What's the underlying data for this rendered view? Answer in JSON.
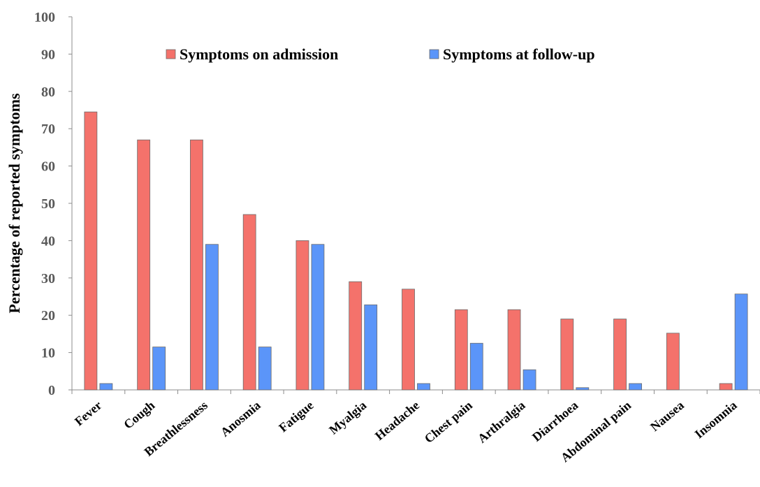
{
  "chart_data": {
    "type": "bar",
    "title": "",
    "xlabel": "",
    "ylabel": "Percentage of reported symptoms",
    "ylim": [
      0,
      100
    ],
    "yticks": [
      0,
      10,
      20,
      30,
      40,
      50,
      60,
      70,
      80,
      90,
      100
    ],
    "grid": false,
    "legend_position": "top",
    "categories": [
      "Fever",
      "Cough",
      "Breathlessness",
      "Anosmia",
      "Fatigue",
      "Myalgia",
      "Headache",
      "Chest pain",
      "Arthralgia",
      "Diarrhoea",
      "Abdominal pain",
      "Nausea",
      "Insomnia"
    ],
    "series": [
      {
        "name": "Symptoms on admission",
        "color": "#f4726b",
        "values": [
          74.5,
          67,
          67,
          47,
          40,
          29,
          27,
          21.5,
          21.5,
          19,
          19,
          15.2,
          1.7
        ]
      },
      {
        "name": "Symptoms at follow-up",
        "color": "#5b95f9",
        "values": [
          1.7,
          11.5,
          39,
          11.5,
          39,
          22.8,
          1.7,
          12.5,
          5.4,
          0.6,
          1.7,
          0,
          25.7
        ]
      }
    ]
  }
}
